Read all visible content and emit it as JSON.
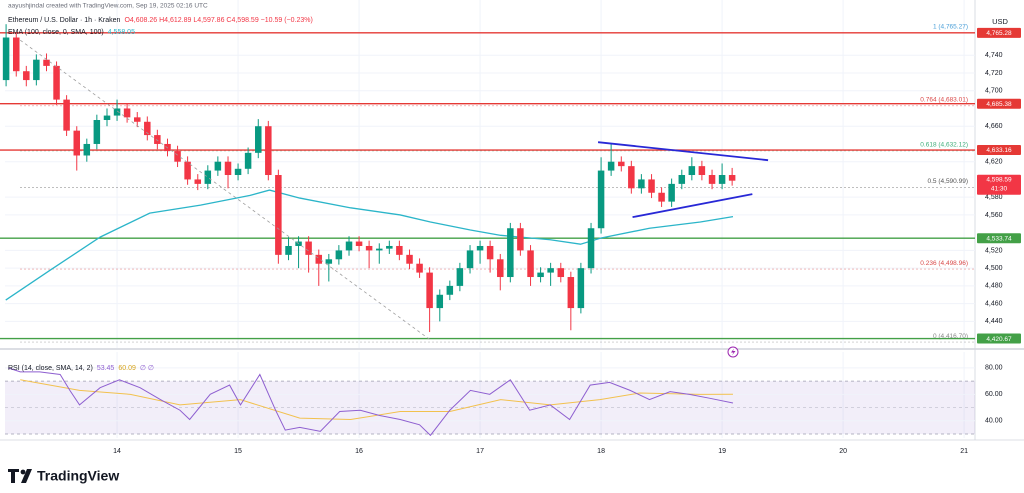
{
  "caption": "aayushjindal created with TradingView.com, Sep 19, 2025 02:16 UTC",
  "brand": "TradingView",
  "chart_data": {
    "type": "candlestick",
    "title": "Ethereum / U.S. Dollar · 1h · Kraken",
    "ohlc_legend": "O4,608.26 H4,612.89 L4,597.86 C4,598.59 −10.59 (−0.23%)",
    "currency": "USD",
    "up_color": "#089981",
    "down_color": "#f23645",
    "grid": true,
    "xlim": [
      13.074,
      21.09
    ],
    "xticks": [
      14,
      15,
      16,
      17,
      18,
      19,
      20,
      21
    ],
    "ylim": [
      4410,
      4791
    ],
    "yticks": [
      {
        "value": 4740,
        "label": "4,740"
      },
      {
        "value": 4720,
        "label": "4,720"
      },
      {
        "value": 4700,
        "label": "4,700"
      },
      {
        "value": 4660,
        "label": "4,660"
      },
      {
        "value": 4620,
        "label": "4,620"
      },
      {
        "value": 4580,
        "label": "4,580"
      },
      {
        "value": 4560,
        "label": "4,560"
      },
      {
        "value": 4520,
        "label": "4,520"
      },
      {
        "value": 4500,
        "label": "4,500"
      },
      {
        "value": 4480,
        "label": "4,480"
      },
      {
        "value": 4460,
        "label": "4,460"
      },
      {
        "value": 4440,
        "label": "4,440"
      }
    ],
    "x": [
      13.083,
      13.167,
      13.25,
      13.333,
      13.417,
      13.5,
      13.583,
      13.667,
      13.75,
      13.833,
      13.917,
      14,
      14.083,
      14.167,
      14.25,
      14.333,
      14.417,
      14.5,
      14.583,
      14.667,
      14.75,
      14.833,
      14.917,
      15,
      15.083,
      15.167,
      15.25,
      15.333,
      15.417,
      15.5,
      15.583,
      15.667,
      15.75,
      15.833,
      15.917,
      16,
      16.083,
      16.167,
      16.25,
      16.333,
      16.417,
      16.5,
      16.583,
      16.667,
      16.75,
      16.833,
      16.917,
      17,
      17.083,
      17.167,
      17.25,
      17.333,
      17.417,
      17.5,
      17.583,
      17.667,
      17.75,
      17.833,
      17.917,
      18,
      18.083,
      18.167,
      18.25,
      18.333,
      18.417,
      18.5,
      18.583,
      18.667,
      18.75,
      18.833,
      18.917,
      19,
      19.083
    ],
    "ohlc": [
      [
        4712,
        4775,
        4705,
        4760
      ],
      [
        4760,
        4766,
        4716,
        4722
      ],
      [
        4722,
        4728,
        4705,
        4712
      ],
      [
        4712,
        4741,
        4706,
        4735
      ],
      [
        4735,
        4742,
        4722,
        4728
      ],
      [
        4728,
        4733,
        4684,
        4690
      ],
      [
        4690,
        4695,
        4649,
        4655
      ],
      [
        4655,
        4660,
        4610,
        4627
      ],
      [
        4627,
        4646,
        4620,
        4640
      ],
      [
        4640,
        4673,
        4634,
        4667
      ],
      [
        4667,
        4680,
        4660,
        4672
      ],
      [
        4672,
        4690,
        4666,
        4680
      ],
      [
        4680,
        4686,
        4664,
        4670
      ],
      [
        4670,
        4676,
        4659,
        4665
      ],
      [
        4665,
        4671,
        4644,
        4650
      ],
      [
        4650,
        4656,
        4634,
        4640
      ],
      [
        4640,
        4646,
        4626,
        4632
      ],
      [
        4632,
        4638,
        4614,
        4620
      ],
      [
        4620,
        4626,
        4594,
        4600
      ],
      [
        4600,
        4606,
        4588,
        4595
      ],
      [
        4595,
        4616,
        4589,
        4610
      ],
      [
        4610,
        4626,
        4604,
        4620
      ],
      [
        4620,
        4626,
        4590,
        4605
      ],
      [
        4605,
        4618,
        4599,
        4612
      ],
      [
        4612,
        4636,
        4606,
        4630
      ],
      [
        4630,
        4668,
        4624,
        4660
      ],
      [
        4660,
        4666,
        4599,
        4605
      ],
      [
        4605,
        4611,
        4505,
        4515
      ],
      [
        4515,
        4535,
        4509,
        4525
      ],
      [
        4525,
        4536,
        4500,
        4530
      ],
      [
        4530,
        4536,
        4495,
        4515
      ],
      [
        4515,
        4521,
        4480,
        4505
      ],
      [
        4505,
        4516,
        4485,
        4510
      ],
      [
        4510,
        4526,
        4504,
        4520
      ],
      [
        4520,
        4536,
        4514,
        4530
      ],
      [
        4530,
        4536,
        4519,
        4525
      ],
      [
        4525,
        4531,
        4500,
        4520
      ],
      [
        4520,
        4528,
        4505,
        4522
      ],
      [
        4522,
        4531,
        4516,
        4525
      ],
      [
        4525,
        4531,
        4509,
        4515
      ],
      [
        4515,
        4521,
        4499,
        4505
      ],
      [
        4505,
        4511,
        4489,
        4495
      ],
      [
        4495,
        4501,
        4428,
        4455
      ],
      [
        4455,
        4476,
        4440,
        4470
      ],
      [
        4470,
        4486,
        4464,
        4480
      ],
      [
        4480,
        4506,
        4474,
        4500
      ],
      [
        4500,
        4526,
        4494,
        4520
      ],
      [
        4520,
        4531,
        4505,
        4525
      ],
      [
        4525,
        4531,
        4495,
        4510
      ],
      [
        4510,
        4516,
        4475,
        4490
      ],
      [
        4490,
        4551,
        4484,
        4545
      ],
      [
        4545,
        4551,
        4514,
        4520
      ],
      [
        4520,
        4526,
        4480,
        4490
      ],
      [
        4490,
        4501,
        4484,
        4495
      ],
      [
        4495,
        4506,
        4480,
        4500
      ],
      [
        4500,
        4506,
        4484,
        4490
      ],
      [
        4490,
        4496,
        4430,
        4455
      ],
      [
        4455,
        4506,
        4449,
        4500
      ],
      [
        4500,
        4551,
        4494,
        4545
      ],
      [
        4545,
        4625,
        4539,
        4610
      ],
      [
        4610,
        4640,
        4604,
        4620
      ],
      [
        4620,
        4626,
        4609,
        4615
      ],
      [
        4615,
        4621,
        4584,
        4590
      ],
      [
        4590,
        4606,
        4584,
        4600
      ],
      [
        4600,
        4606,
        4579,
        4585
      ],
      [
        4585,
        4591,
        4569,
        4575
      ],
      [
        4575,
        4601,
        4569,
        4595
      ],
      [
        4595,
        4611,
        4589,
        4605
      ],
      [
        4605,
        4625,
        4599,
        4615
      ],
      [
        4615,
        4621,
        4599,
        4605
      ],
      [
        4605,
        4611,
        4589,
        4595
      ],
      [
        4595,
        4618,
        4589,
        4605
      ],
      [
        4605,
        4613,
        4593,
        4598.59
      ]
    ],
    "ema": {
      "legend": "EMA (100, close, 0, SMA, 100)",
      "last_label": "4,558.05",
      "color": "#2bb5c9",
      "x": [
        13.08,
        13.45,
        13.86,
        14.27,
        14.69,
        15.1,
        15.26,
        15.51,
        15.93,
        16.34,
        16.59,
        16.92,
        17.17,
        17.58,
        17.83,
        18.0,
        18.4,
        18.82,
        19.09
      ],
      "values": [
        4464,
        4498,
        4535,
        4562,
        4571,
        4582,
        4588,
        4579,
        4568,
        4560,
        4552,
        4543,
        4537,
        4532,
        4527,
        4534,
        4545,
        4552,
        4558.05
      ]
    },
    "levels": [
      {
        "value": 4765.28,
        "label": "4,765.28",
        "color": "#e53935"
      },
      {
        "value": 4685.38,
        "label": "4,685.38",
        "color": "#e53935"
      },
      {
        "value": 4633.16,
        "label": "4,633.16",
        "color": "#e53935"
      },
      {
        "value": 4533.74,
        "label": "4,533.74",
        "color": "#43a047"
      },
      {
        "value": 4420.67,
        "label": "4,420.67",
        "color": "#43a047"
      }
    ],
    "fibs": [
      {
        "value": 4765.27,
        "label": "1 (4,765.27)",
        "color": "#4a9fd8"
      },
      {
        "value": 4683.01,
        "label": "0.764 (4,683.01)",
        "color": "#d94848"
      },
      {
        "value": 4632.12,
        "label": "0.618 (4,632.12)",
        "color": "#3fae7a"
      },
      {
        "value": 4590.99,
        "label": "0.5 (4,590.99)",
        "color": "#555555"
      },
      {
        "value": 4498.96,
        "label": "0.236 (4,498.96)",
        "color": "#d94848"
      },
      {
        "value": 4416.7,
        "label": "0 (4,416.70)",
        "color": "#888888"
      }
    ],
    "last_price": {
      "value": 4598.59,
      "label": "4,598.59",
      "countdown": "41:30",
      "color": "#f23645"
    },
    "drawings": [
      {
        "points": [
          [
            17.975,
            4642
          ],
          [
            19.38,
            4621.7
          ]
        ],
        "color": "#2828d6",
        "dashed": false
      },
      {
        "points": [
          [
            18.26,
            4557.5
          ],
          [
            19.25,
            4583.4
          ]
        ],
        "color": "#2828d6",
        "dashed": false
      },
      {
        "points": [
          [
            13.2,
            4757
          ],
          [
            16.59,
            4419
          ]
        ],
        "color": "#9e9e9e",
        "dashed": true
      }
    ],
    "rsi": {
      "legend": "RSI (14, close, SMA, 14, 2)",
      "extra": "∅ ∅",
      "color": "#8e5fd0",
      "ylim": [
        27,
        92
      ],
      "yticks": [
        {
          "value": 80,
          "label": "80.00"
        },
        {
          "value": 60,
          "label": "60.00"
        },
        {
          "value": 40,
          "label": "40.00"
        }
      ],
      "band": [
        30,
        70
      ],
      "midline": 50,
      "x": [
        13.1,
        13.2,
        13.36,
        13.53,
        13.61,
        13.69,
        13.86,
        14.02,
        14.19,
        14.36,
        14.52,
        14.6,
        14.77,
        14.93,
        15.02,
        15.18,
        15.31,
        15.39,
        15.51,
        15.68,
        15.84,
        16.01,
        16.17,
        16.34,
        16.5,
        16.59,
        16.75,
        16.92,
        17.08,
        17.25,
        17.41,
        17.58,
        17.74,
        17.91,
        18.07,
        18.24,
        18.4,
        18.57,
        18.73,
        18.9,
        19.09
      ],
      "values": [
        80,
        77,
        77,
        75,
        63,
        52,
        65,
        71,
        65,
        56,
        48,
        41,
        60,
        67,
        52,
        75,
        48,
        33,
        35,
        32,
        47,
        48,
        44,
        41,
        37,
        29,
        48,
        63,
        60,
        71,
        48,
        52,
        41,
        67,
        69,
        63,
        56,
        62,
        60,
        57,
        53.45
      ],
      "sma": {
        "color": "#f2c14e",
        "x": [
          13.2,
          13.69,
          14.11,
          14.52,
          15.02,
          15.51,
          15.93,
          16.34,
          16.75,
          17.17,
          17.58,
          17.99,
          18.32,
          18.82,
          19.09
        ],
        "values": [
          71,
          63,
          60,
          52,
          56,
          42,
          41,
          47,
          47,
          56,
          52,
          56,
          61,
          60,
          60.09
        ]
      }
    }
  }
}
